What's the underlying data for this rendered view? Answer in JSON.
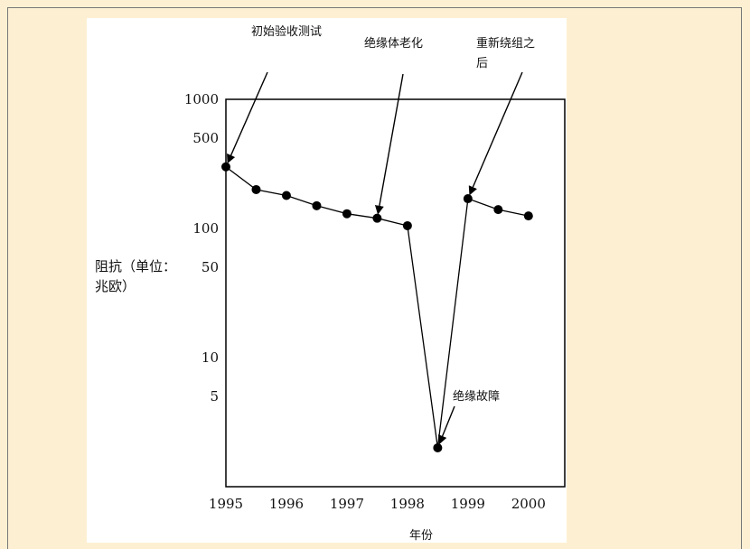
{
  "chart_data": {
    "type": "line",
    "title": "",
    "xlabel": "年份",
    "ylabel": "阻抗（单位：兆欧）",
    "y_scale": "log",
    "ylim": [
      1,
      1000
    ],
    "xlim": [
      1995,
      2000.6
    ],
    "x_ticks": [
      "1995",
      "1996",
      "1997",
      "1998",
      "1999",
      "2000"
    ],
    "y_ticks": [
      "1000",
      "500",
      "100",
      "50",
      "10",
      "5"
    ],
    "series": [
      {
        "x": [
          1995.0,
          1995.5,
          1996.0,
          1996.5,
          1997.0,
          1997.5,
          1998.0,
          1998.5,
          1999.0,
          1999.5,
          2000.0
        ],
        "y": [
          300,
          200,
          180,
          150,
          130,
          120,
          105,
          2,
          170,
          140,
          125
        ]
      }
    ],
    "annotations": [
      {
        "text": "初始验收测试",
        "x": 1995.0,
        "y": 300
      },
      {
        "text": "绝缘体老化",
        "x": 1997.5,
        "y": 120
      },
      {
        "text": "重新绕组之后",
        "x": 1999.0,
        "y": 170
      },
      {
        "text": "绝缘故障",
        "x": 1998.5,
        "y": 2
      }
    ],
    "grid": false,
    "colors": {
      "line": "#000000",
      "marker": "#000000",
      "background": "#fdf0d2",
      "panel": "#ffffff"
    }
  }
}
